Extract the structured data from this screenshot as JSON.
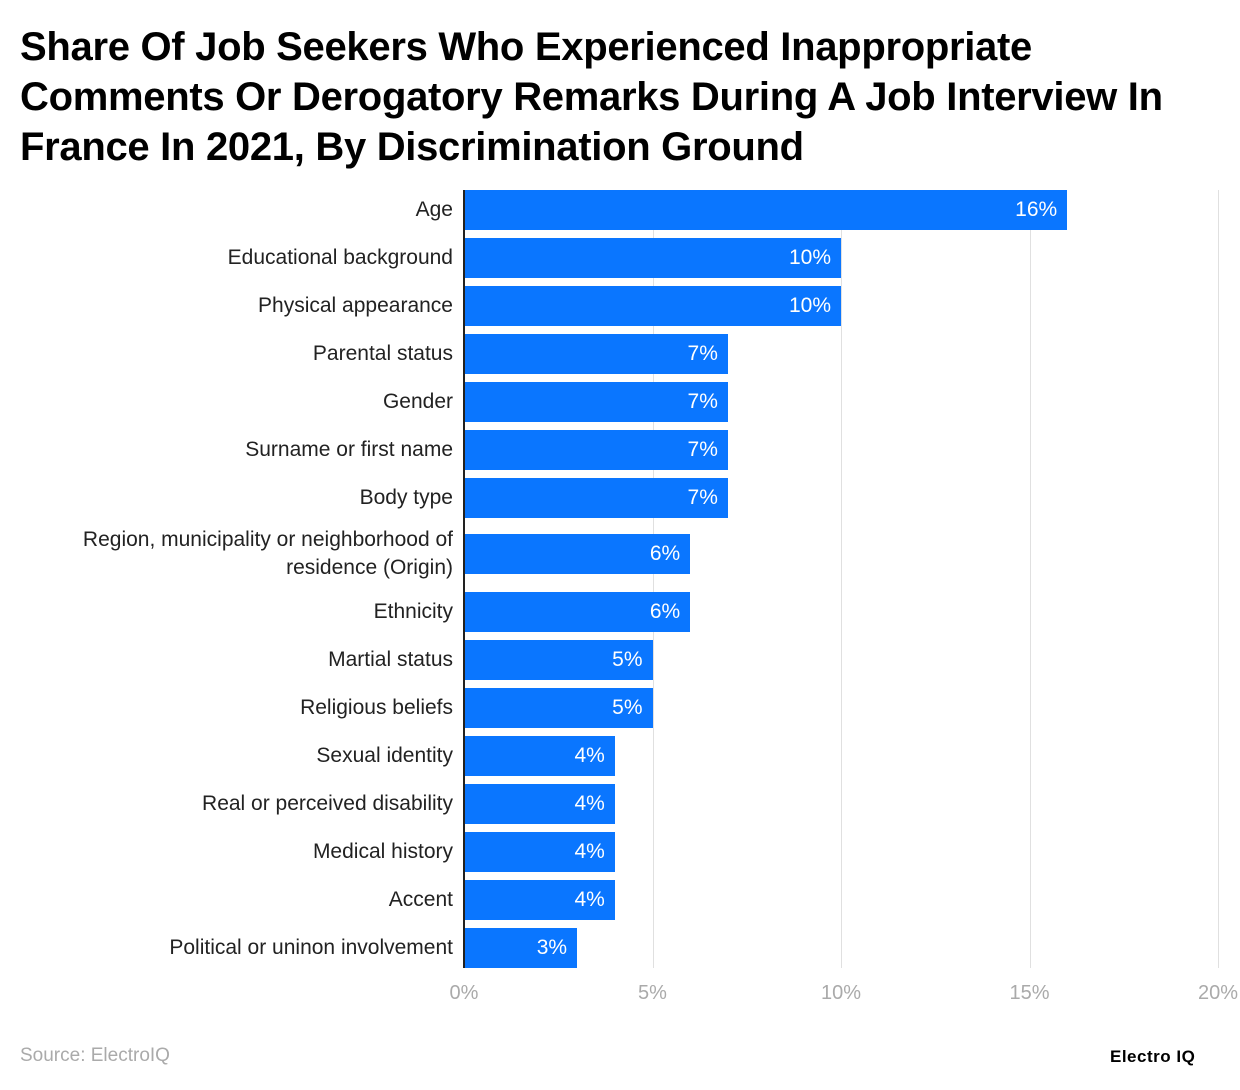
{
  "title": "Share Of Job Seekers Who Experienced Inappropriate Comments Or Derogatory Remarks During A Job Interview In France In 2021, By Discrimination Ground",
  "source": "Source: ElectroIQ",
  "logo": "Electro IQ",
  "chart_data": {
    "type": "bar",
    "orientation": "horizontal",
    "categories": [
      "Age",
      "Educational background",
      "Physical appearance",
      "Parental status",
      "Gender",
      "Surname or first name",
      "Body type",
      "Region, municipality or neighborhood of residence (Origin)",
      "Ethnicity",
      "Martial status",
      "Religious beliefs",
      "Sexual identity",
      "Real or perceived disability",
      "Medical history",
      "Accent",
      "Political or uninon involvement"
    ],
    "values": [
      16,
      10,
      10,
      7,
      7,
      7,
      7,
      6,
      6,
      5,
      5,
      4,
      4,
      4,
      4,
      3
    ],
    "value_labels": [
      "16%",
      "10%",
      "10%",
      "7%",
      "7%",
      "7%",
      "7%",
      "6%",
      "6%",
      "5%",
      "5%",
      "4%",
      "4%",
      "4%",
      "4%",
      "3%"
    ],
    "xlim": [
      0,
      20
    ],
    "xticks": [
      0,
      5,
      10,
      15,
      20
    ],
    "xtick_labels": [
      "0%",
      "5%",
      "10%",
      "15%",
      "20%"
    ],
    "grid": true,
    "color": "#0a76ff"
  }
}
